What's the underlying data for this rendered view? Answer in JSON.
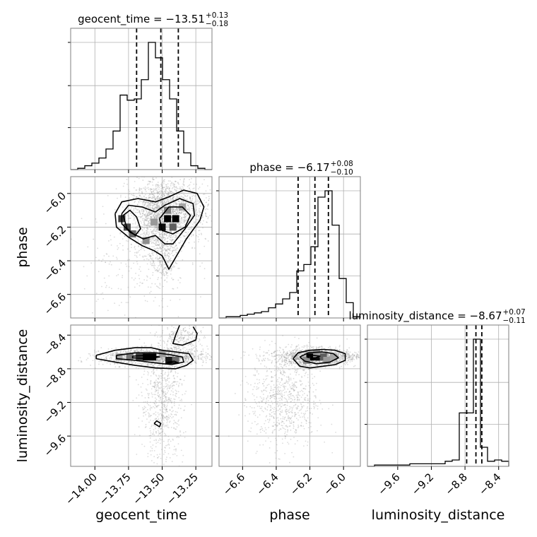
{
  "chart_data": {
    "type": "corner",
    "parameters": [
      {
        "name": "geocent_time",
        "axis_label": "geocent_time",
        "range": [
          -14.18,
          -13.13
        ],
        "ticks": [
          -14.0,
          -13.75,
          -13.5,
          -13.25
        ],
        "tick_labels": [
          "−14.00",
          "−13.75",
          "−13.50",
          "−13.25"
        ],
        "title": {
          "main": "geocent_time = −13.51",
          "sup": "+0.13",
          "sub": "−0.18"
        },
        "quantiles": [
          -13.69,
          -13.51,
          -13.38
        ],
        "histogram": {
          "edges_start": -14.18,
          "bin_width": 0.0525,
          "counts": [
            0,
            1,
            3,
            5,
            9,
            16,
            30,
            58,
            54,
            55,
            70,
            99,
            87,
            70,
            55,
            30,
            13,
            3,
            1,
            0
          ]
        }
      },
      {
        "name": "phase",
        "axis_label": "phase",
        "range": [
          -6.74,
          -5.9
        ],
        "ticks": [
          -6.6,
          -6.4,
          -6.2,
          -6.0
        ],
        "tick_labels": [
          "−6.6",
          "−6.4",
          "−6.2",
          "−6.0"
        ],
        "title": {
          "main": "phase = −6.17",
          "sup": "+0.08",
          "sub": "−0.10"
        },
        "quantiles": [
          -6.27,
          -6.17,
          -6.09
        ],
        "histogram": {
          "edges_start": -6.74,
          "bin_width": 0.042,
          "counts": [
            0,
            1,
            1,
            2,
            3,
            4,
            5,
            8,
            11,
            15,
            20,
            37,
            42,
            56,
            95,
            100,
            73,
            31,
            12,
            1
          ]
        }
      },
      {
        "name": "luminosity_distance",
        "axis_label": "luminosity_distance",
        "range": [
          -9.96,
          -8.28
        ],
        "ticks": [
          -9.6,
          -9.2,
          -8.8,
          -8.4
        ],
        "tick_labels": [
          "−9.6",
          "−9.2",
          "−8.8",
          "−8.4"
        ],
        "title": {
          "main": "luminosity_distance = −8.67",
          "sup": "+0.07",
          "sub": "−0.11"
        },
        "quantiles": [
          -8.78,
          -8.67,
          -8.6
        ],
        "histogram": {
          "edges_start": -9.96,
          "bin_width": 0.084,
          "counts": [
            0,
            1,
            1,
            1,
            1,
            1,
            2,
            2,
            2,
            2,
            2,
            4,
            5,
            42,
            42,
            100,
            15,
            4,
            5,
            4
          ]
        }
      }
    ],
    "pairs": [
      {
        "x": "geocent_time",
        "y": "phase",
        "cloud": [
          {
            "cx": -13.52,
            "cy": -6.14,
            "sx": 0.11,
            "sy": 0.11,
            "n": 1300
          },
          {
            "cx": -13.42,
            "cy": -6.1,
            "sx": 0.14,
            "sy": 0.1,
            "n": 900
          },
          {
            "cx": -13.5,
            "cy": -6.38,
            "sx": 0.05,
            "sy": 0.08,
            "n": 250
          },
          {
            "cx": -13.7,
            "cy": -6.4,
            "sx": 0.2,
            "sy": 0.18,
            "n": 220
          }
        ],
        "hist_cells": [
          {
            "x": -13.8,
            "y": -6.15,
            "level": 0.75
          },
          {
            "x": -13.76,
            "y": -6.2,
            "level": 0.7
          },
          {
            "x": -13.72,
            "y": -6.24,
            "level": 0.55
          },
          {
            "x": -13.62,
            "y": -6.28,
            "level": 0.4
          },
          {
            "x": -13.5,
            "y": -6.2,
            "level": 0.95
          },
          {
            "x": -13.46,
            "y": -6.15,
            "level": 1.0
          },
          {
            "x": -13.4,
            "y": -6.15,
            "level": 1.0
          },
          {
            "x": -13.42,
            "y": -6.2,
            "level": 0.6
          },
          {
            "x": -13.46,
            "y": -6.1,
            "level": 0.45
          },
          {
            "x": -13.56,
            "y": -6.17,
            "level": 0.35
          },
          {
            "x": -13.35,
            "y": -6.08,
            "level": 0.3
          }
        ],
        "contours": [
          [
            [
              -13.85,
              -6.12
            ],
            [
              -13.8,
              -6.05
            ],
            [
              -13.68,
              -6.03
            ],
            [
              -13.55,
              -6.05
            ],
            [
              -13.45,
              -6.02
            ],
            [
              -13.34,
              -5.98
            ],
            [
              -13.24,
              -6.0
            ],
            [
              -13.19,
              -6.08
            ],
            [
              -13.22,
              -6.16
            ],
            [
              -13.32,
              -6.27
            ],
            [
              -13.4,
              -6.38
            ],
            [
              -13.45,
              -6.45
            ],
            [
              -13.5,
              -6.37
            ],
            [
              -13.56,
              -6.34
            ],
            [
              -13.65,
              -6.31
            ],
            [
              -13.75,
              -6.26
            ],
            [
              -13.84,
              -6.2
            ],
            [
              -13.85,
              -6.12
            ]
          ],
          [
            [
              -13.8,
              -6.12
            ],
            [
              -13.75,
              -6.07
            ],
            [
              -13.65,
              -6.08
            ],
            [
              -13.55,
              -6.11
            ],
            [
              -13.48,
              -6.07
            ],
            [
              -13.37,
              -6.03
            ],
            [
              -13.27,
              -6.06
            ],
            [
              -13.26,
              -6.13
            ],
            [
              -13.33,
              -6.21
            ],
            [
              -13.42,
              -6.3
            ],
            [
              -13.48,
              -6.3
            ],
            [
              -13.55,
              -6.25
            ],
            [
              -13.64,
              -6.27
            ],
            [
              -13.74,
              -6.23
            ],
            [
              -13.8,
              -6.18
            ],
            [
              -13.8,
              -6.12
            ]
          ],
          [
            [
              -13.79,
              -6.13
            ],
            [
              -13.74,
              -6.1
            ],
            [
              -13.69,
              -6.14
            ],
            [
              -13.66,
              -6.21
            ],
            [
              -13.7,
              -6.25
            ],
            [
              -13.76,
              -6.21
            ],
            [
              -13.79,
              -6.13
            ]
          ],
          [
            [
              -13.52,
              -6.15
            ],
            [
              -13.45,
              -6.08
            ],
            [
              -13.35,
              -6.08
            ],
            [
              -13.29,
              -6.13
            ],
            [
              -13.33,
              -6.2
            ],
            [
              -13.42,
              -6.24
            ],
            [
              -13.5,
              -6.22
            ],
            [
              -13.52,
              -6.15
            ]
          ]
        ]
      },
      {
        "x": "geocent_time",
        "y": "luminosity_distance",
        "cloud": [
          {
            "cx": -13.55,
            "cy": -8.66,
            "sx": 0.2,
            "sy": 0.05,
            "n": 1300
          },
          {
            "cx": -13.5,
            "cy": -9.2,
            "sx": 0.08,
            "sy": 0.35,
            "n": 700
          },
          {
            "cx": -13.35,
            "cy": -8.45,
            "sx": 0.08,
            "sy": 0.1,
            "n": 250
          }
        ],
        "hist_cells": [
          {
            "x": -13.62,
            "y": -8.66,
            "level": 1.0
          },
          {
            "x": -13.57,
            "y": -8.66,
            "level": 1.0
          },
          {
            "x": -13.67,
            "y": -8.66,
            "level": 0.75
          },
          {
            "x": -13.74,
            "y": -8.66,
            "level": 0.5
          },
          {
            "x": -13.45,
            "y": -8.7,
            "level": 0.9
          },
          {
            "x": -13.4,
            "y": -8.7,
            "level": 0.55
          },
          {
            "x": -13.82,
            "y": -8.66,
            "level": 0.3
          },
          {
            "x": -13.5,
            "y": -8.62,
            "level": 0.35
          }
        ],
        "contours": [
          [
            [
              -13.99,
              -8.64
            ],
            [
              -13.85,
              -8.58
            ],
            [
              -13.7,
              -8.55
            ],
            [
              -13.58,
              -8.55
            ],
            [
              -13.5,
              -8.58
            ],
            [
              -13.4,
              -8.6
            ],
            [
              -13.3,
              -8.62
            ],
            [
              -13.27,
              -8.7
            ],
            [
              -13.32,
              -8.76
            ],
            [
              -13.4,
              -8.8
            ],
            [
              -13.55,
              -8.79
            ],
            [
              -13.7,
              -8.76
            ],
            [
              -13.85,
              -8.72
            ],
            [
              -13.99,
              -8.68
            ],
            [
              -13.99,
              -8.64
            ]
          ],
          [
            [
              -13.84,
              -8.64
            ],
            [
              -13.7,
              -8.61
            ],
            [
              -13.55,
              -8.61
            ],
            [
              -13.45,
              -8.63
            ],
            [
              -13.35,
              -8.66
            ],
            [
              -13.34,
              -8.72
            ],
            [
              -13.43,
              -8.75
            ],
            [
              -13.55,
              -8.73
            ],
            [
              -13.7,
              -8.7
            ],
            [
              -13.84,
              -8.68
            ],
            [
              -13.84,
              -8.64
            ]
          ],
          [
            [
              -13.72,
              -8.65
            ],
            [
              -13.6,
              -8.64
            ],
            [
              -13.52,
              -8.66
            ],
            [
              -13.6,
              -8.68
            ],
            [
              -13.72,
              -8.67
            ],
            [
              -13.72,
              -8.65
            ]
          ],
          [
            [
              -13.46,
              -8.72
            ],
            [
              -13.41,
              -8.71
            ],
            [
              -13.38,
              -8.73
            ],
            [
              -13.46,
              -8.73
            ],
            [
              -13.46,
              -8.72
            ]
          ],
          [
            [
              -13.37,
              -8.28
            ],
            [
              -13.4,
              -8.4
            ],
            [
              -13.42,
              -8.5
            ],
            [
              -13.35,
              -8.52
            ],
            [
              -13.25,
              -8.46
            ],
            [
              -13.24,
              -8.38
            ],
            [
              -13.27,
              -8.3
            ]
          ],
          [
            [
              -13.56,
              -9.45
            ],
            [
              -13.54,
              -9.42
            ],
            [
              -13.51,
              -9.45
            ],
            [
              -13.52,
              -9.49
            ],
            [
              -13.56,
              -9.45
            ]
          ]
        ]
      },
      {
        "x": "phase",
        "y": "luminosity_distance",
        "cloud": [
          {
            "cx": -6.17,
            "cy": -8.66,
            "sx": 0.1,
            "sy": 0.05,
            "n": 1300
          },
          {
            "cx": -6.35,
            "cy": -9.15,
            "sx": 0.1,
            "sy": 0.3,
            "n": 800
          },
          {
            "cx": -6.1,
            "cy": -8.65,
            "sx": 0.2,
            "sy": 0.03,
            "n": 350
          }
        ],
        "hist_cells": [
          {
            "x": -6.2,
            "y": -8.66,
            "level": 1.0
          },
          {
            "x": -6.16,
            "y": -8.66,
            "level": 0.95
          },
          {
            "x": -6.12,
            "y": -8.66,
            "level": 0.6
          },
          {
            "x": -6.22,
            "y": -8.7,
            "level": 0.4
          },
          {
            "x": -6.1,
            "y": -8.7,
            "level": 0.35
          },
          {
            "x": -6.06,
            "y": -8.66,
            "level": 0.3
          },
          {
            "x": -6.16,
            "y": -8.62,
            "level": 0.35
          }
        ],
        "contours": [
          [
            [
              -6.3,
              -8.68
            ],
            [
              -6.27,
              -8.61
            ],
            [
              -6.2,
              -8.58
            ],
            [
              -6.12,
              -8.57
            ],
            [
              -6.05,
              -8.58
            ],
            [
              -5.99,
              -8.62
            ],
            [
              -5.99,
              -8.7
            ],
            [
              -6.05,
              -8.75
            ],
            [
              -6.12,
              -8.77
            ],
            [
              -6.2,
              -8.79
            ],
            [
              -6.26,
              -8.77
            ],
            [
              -6.3,
              -8.68
            ]
          ],
          [
            [
              -6.26,
              -8.66
            ],
            [
              -6.21,
              -8.61
            ],
            [
              -6.13,
              -8.6
            ],
            [
              -6.06,
              -8.62
            ],
            [
              -6.03,
              -8.67
            ],
            [
              -6.08,
              -8.72
            ],
            [
              -6.16,
              -8.74
            ],
            [
              -6.23,
              -8.71
            ],
            [
              -6.26,
              -8.66
            ]
          ],
          [
            [
              -6.22,
              -8.66
            ],
            [
              -6.18,
              -8.64
            ],
            [
              -6.14,
              -8.65
            ],
            [
              -6.18,
              -8.68
            ],
            [
              -6.22,
              -8.66
            ]
          ]
        ]
      }
    ],
    "grid": true,
    "contour_color": "#000000",
    "histogram_color": "#000000",
    "quantile_line_style": "dashed",
    "grid_color": "#b0b0b0",
    "scatter_color": "#9a9a9a"
  }
}
